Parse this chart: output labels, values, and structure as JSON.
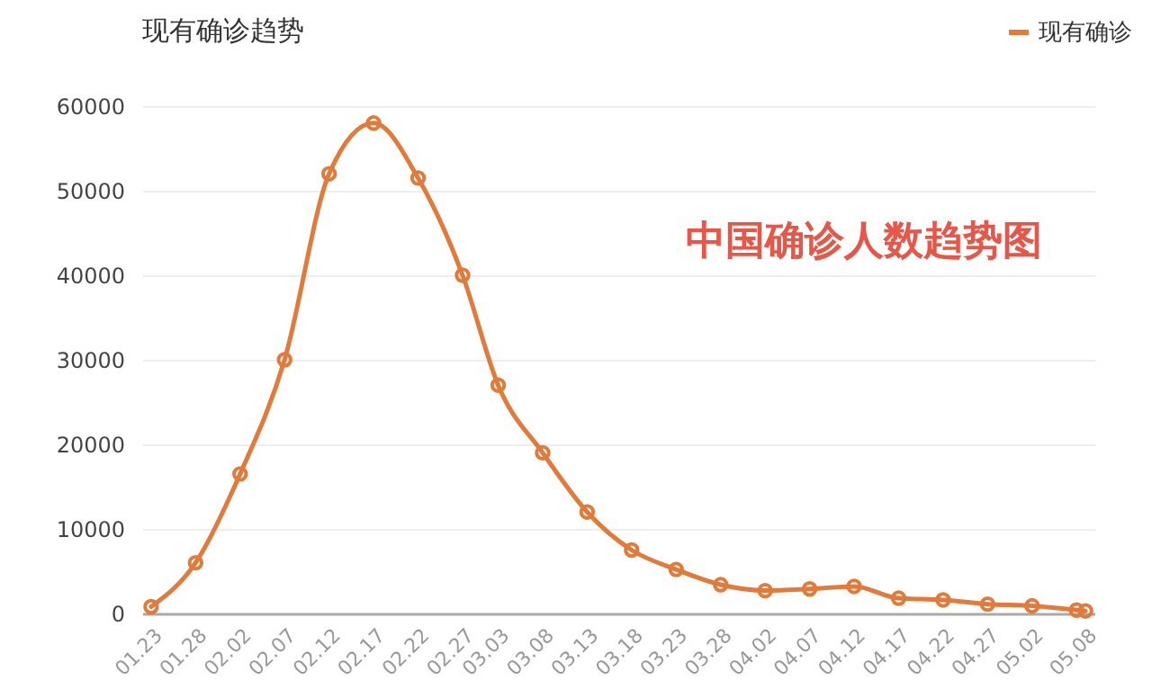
{
  "chart_data": {
    "type": "line",
    "title": "现有确诊趋势",
    "annotations": [
      "中国确诊人数趋势图"
    ],
    "x": [
      "--01-23",
      "--01-28",
      "--02-02",
      "--02-07",
      "--02-12",
      "--02-17",
      "--02-22",
      "--02-27",
      "--03-03",
      "--03-08",
      "--03-13",
      "--03-18",
      "--03-23",
      "--03-28",
      "--04-02",
      "--04-07",
      "--04-12",
      "--04-17",
      "--04-22",
      "--04-27",
      "--05-02",
      "--05-07",
      "--05-08"
    ],
    "series": [
      {
        "name": "现有确诊",
        "color": "#e07b3c",
        "values": [
          800,
          6000,
          16500,
          30000,
          52000,
          58000,
          51500,
          40000,
          27000,
          19000,
          12000,
          7500,
          5200,
          3400,
          2700,
          2900,
          3200,
          1800,
          1600,
          1100,
          900,
          400,
          300
        ]
      }
    ],
    "xlim": [
      "--01-22",
      "--05-09"
    ],
    "xticks": [
      {
        "value": "--01-23",
        "label": "01.23"
      },
      {
        "value": "--01-28",
        "label": "01.28"
      },
      {
        "value": "--02-02",
        "label": "02.02"
      },
      {
        "value": "--02-07",
        "label": "02.07"
      },
      {
        "value": "--02-12",
        "label": "02.12"
      },
      {
        "value": "--02-17",
        "label": "02.17"
      },
      {
        "value": "--02-22",
        "label": "02.22"
      },
      {
        "value": "--02-27",
        "label": "02.27"
      },
      {
        "value": "--03-03",
        "label": "03.03"
      },
      {
        "value": "--03-08",
        "label": "03.08"
      },
      {
        "value": "--03-13",
        "label": "03.13"
      },
      {
        "value": "--03-18",
        "label": "03.18"
      },
      {
        "value": "--03-23",
        "label": "03.23"
      },
      {
        "value": "--03-28",
        "label": "03.28"
      },
      {
        "value": "--04-02",
        "label": "04.02"
      },
      {
        "value": "--04-07",
        "label": "04.07"
      },
      {
        "value": "--04-12",
        "label": "04.12"
      },
      {
        "value": "--04-17",
        "label": "04.17"
      },
      {
        "value": "--04-22",
        "label": "04.22"
      },
      {
        "value": "--04-27",
        "label": "04.27"
      },
      {
        "value": "--05-02",
        "label": "05.02"
      },
      {
        "value": "--05-08",
        "label": "05.08"
      }
    ],
    "ylim": [
      0,
      60000
    ],
    "yticks": [
      0,
      10000,
      20000,
      30000,
      40000,
      50000,
      60000
    ],
    "grid": "y",
    "legend": "top right",
    "marker": "circle",
    "line_style": "solid"
  }
}
